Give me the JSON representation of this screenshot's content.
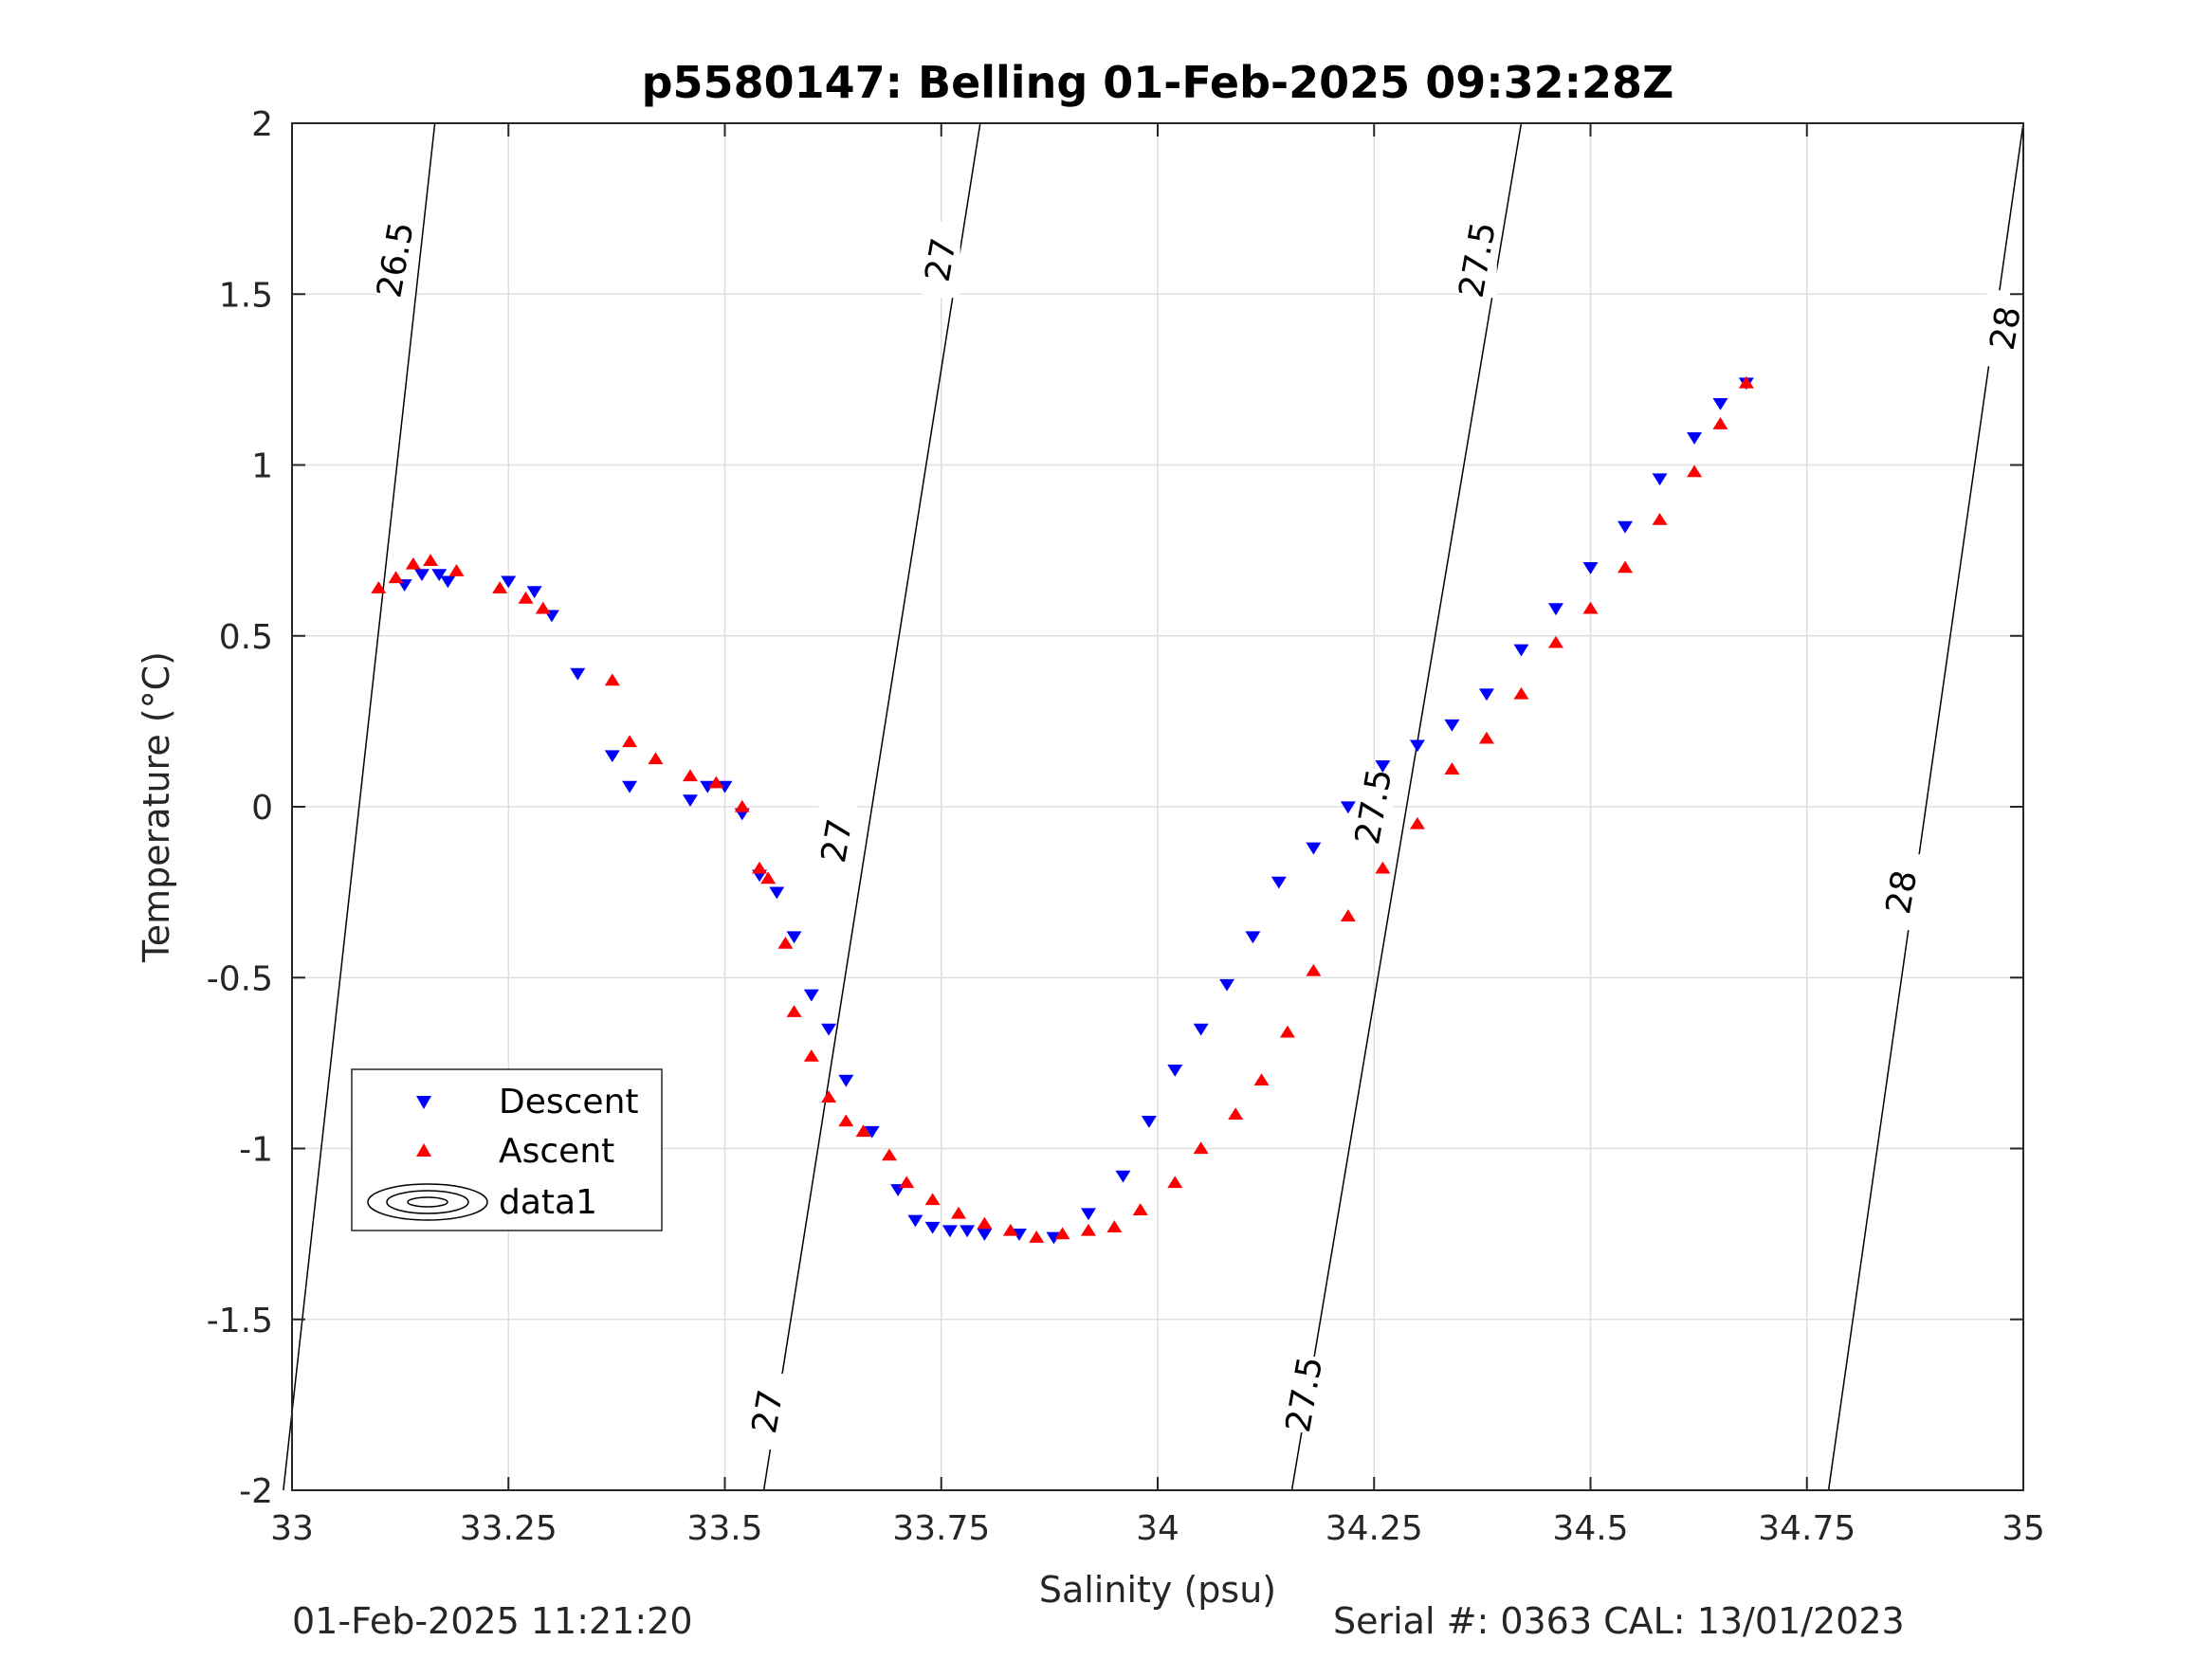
{
  "chart_data": {
    "type": "scatter",
    "title": "p5580147: Belling 01-Feb-2025 09:32:28Z",
    "xlabel": "Salinity (psu)",
    "ylabel": "Temperature (°C)",
    "xlim": [
      33,
      35
    ],
    "ylim": [
      -2,
      2
    ],
    "x_ticks": [
      33,
      33.25,
      33.5,
      33.75,
      34,
      34.25,
      34.5,
      34.75,
      35
    ],
    "x_tick_labels": [
      "33",
      "33.25",
      "33.5",
      "33.75",
      "34",
      "34.25",
      "34.5",
      "34.75",
      "35"
    ],
    "y_ticks": [
      -2,
      -1.5,
      -1,
      -0.5,
      0,
      0.5,
      1,
      1.5,
      2
    ],
    "y_tick_labels": [
      "-2",
      "-1.5",
      "-1",
      "-0.5",
      "0",
      "0.5",
      "1",
      "1.5",
      "2"
    ],
    "grid": true,
    "legend_position": "lower-left",
    "legend": [
      "Descent",
      "Ascent",
      "data1"
    ],
    "series": [
      {
        "name": "Descent",
        "marker": "triangle-down",
        "color": "#0000ff",
        "x": [
          33.13,
          33.15,
          33.17,
          33.18,
          33.25,
          33.28,
          33.3,
          33.33,
          33.37,
          33.39,
          33.46,
          33.48,
          33.5,
          33.52,
          33.54,
          33.56,
          33.58,
          33.6,
          33.62,
          33.64,
          33.67,
          33.7,
          33.72,
          33.74,
          33.76,
          33.78,
          33.8,
          33.84,
          33.88,
          33.92,
          33.96,
          33.99,
          34.02,
          34.05,
          34.08,
          34.11,
          34.14,
          34.18,
          34.22,
          34.26,
          34.3,
          34.34,
          34.38,
          34.42,
          34.46,
          34.5,
          34.54,
          34.58,
          34.62,
          34.65,
          34.68
        ],
        "y": [
          0.65,
          0.68,
          0.68,
          0.66,
          0.66,
          0.63,
          0.56,
          0.39,
          0.15,
          0.06,
          0.02,
          0.06,
          0.06,
          -0.02,
          -0.2,
          -0.25,
          -0.38,
          -0.55,
          -0.65,
          -0.8,
          -0.95,
          -1.12,
          -1.21,
          -1.23,
          -1.24,
          -1.24,
          -1.25,
          -1.25,
          -1.26,
          -1.19,
          -1.08,
          -0.92,
          -0.77,
          -0.65,
          -0.52,
          -0.38,
          -0.22,
          -0.12,
          0.0,
          0.12,
          0.18,
          0.24,
          0.33,
          0.46,
          0.58,
          0.7,
          0.82,
          0.96,
          1.08,
          1.18,
          1.24
        ]
      },
      {
        "name": "Ascent",
        "marker": "triangle-up",
        "color": "#ff0000",
        "x": [
          33.1,
          33.12,
          33.14,
          33.16,
          33.19,
          33.24,
          33.27,
          33.29,
          33.37,
          33.39,
          33.42,
          33.46,
          33.49,
          33.52,
          33.54,
          33.55,
          33.57,
          33.58,
          33.6,
          33.62,
          33.64,
          33.66,
          33.69,
          33.71,
          33.74,
          33.77,
          33.8,
          33.83,
          33.86,
          33.89,
          33.92,
          33.95,
          33.98,
          34.02,
          34.05,
          34.09,
          34.12,
          34.15,
          34.18,
          34.22,
          34.26,
          34.3,
          34.34,
          34.38,
          34.42,
          34.46,
          34.5,
          34.54,
          34.58,
          34.62,
          34.65,
          34.68
        ],
        "y": [
          0.64,
          0.67,
          0.71,
          0.72,
          0.69,
          0.64,
          0.61,
          0.58,
          0.37,
          0.19,
          0.14,
          0.09,
          0.07,
          0.0,
          -0.18,
          -0.21,
          -0.4,
          -0.6,
          -0.73,
          -0.85,
          -0.92,
          -0.95,
          -1.02,
          -1.1,
          -1.15,
          -1.19,
          -1.22,
          -1.24,
          -1.26,
          -1.25,
          -1.24,
          -1.23,
          -1.18,
          -1.1,
          -1.0,
          -0.9,
          -0.8,
          -0.66,
          -0.48,
          -0.32,
          -0.18,
          -0.05,
          0.11,
          0.2,
          0.33,
          0.48,
          0.58,
          0.7,
          0.84,
          0.98,
          1.12,
          1.24
        ]
      }
    ],
    "contours": {
      "name": "data1",
      "labels": [
        {
          "level": 26.5,
          "text": "26.5",
          "x": 33.12,
          "y": 1.6
        },
        {
          "level": 27,
          "text": "27",
          "x": 33.75,
          "y": 1.6
        },
        {
          "level": 27,
          "text": "27",
          "x": 33.63,
          "y": -0.1
        },
        {
          "level": 27,
          "text": "27",
          "x": 33.55,
          "y": -1.77
        },
        {
          "level": 27.5,
          "text": "27.5",
          "x": 34.37,
          "y": 1.6
        },
        {
          "level": 27.5,
          "text": "27.5",
          "x": 34.25,
          "y": 0.0
        },
        {
          "level": 27.5,
          "text": "27.5",
          "x": 34.17,
          "y": -1.72
        },
        {
          "level": 28,
          "text": "28",
          "x": 34.98,
          "y": 1.4
        },
        {
          "level": 28,
          "text": "28",
          "x": 34.86,
          "y": -0.25
        }
      ]
    }
  },
  "footer": {
    "left": "01-Feb-2025 11:21:20",
    "right": "Serial #: 0363  CAL: 13/01/2023"
  }
}
